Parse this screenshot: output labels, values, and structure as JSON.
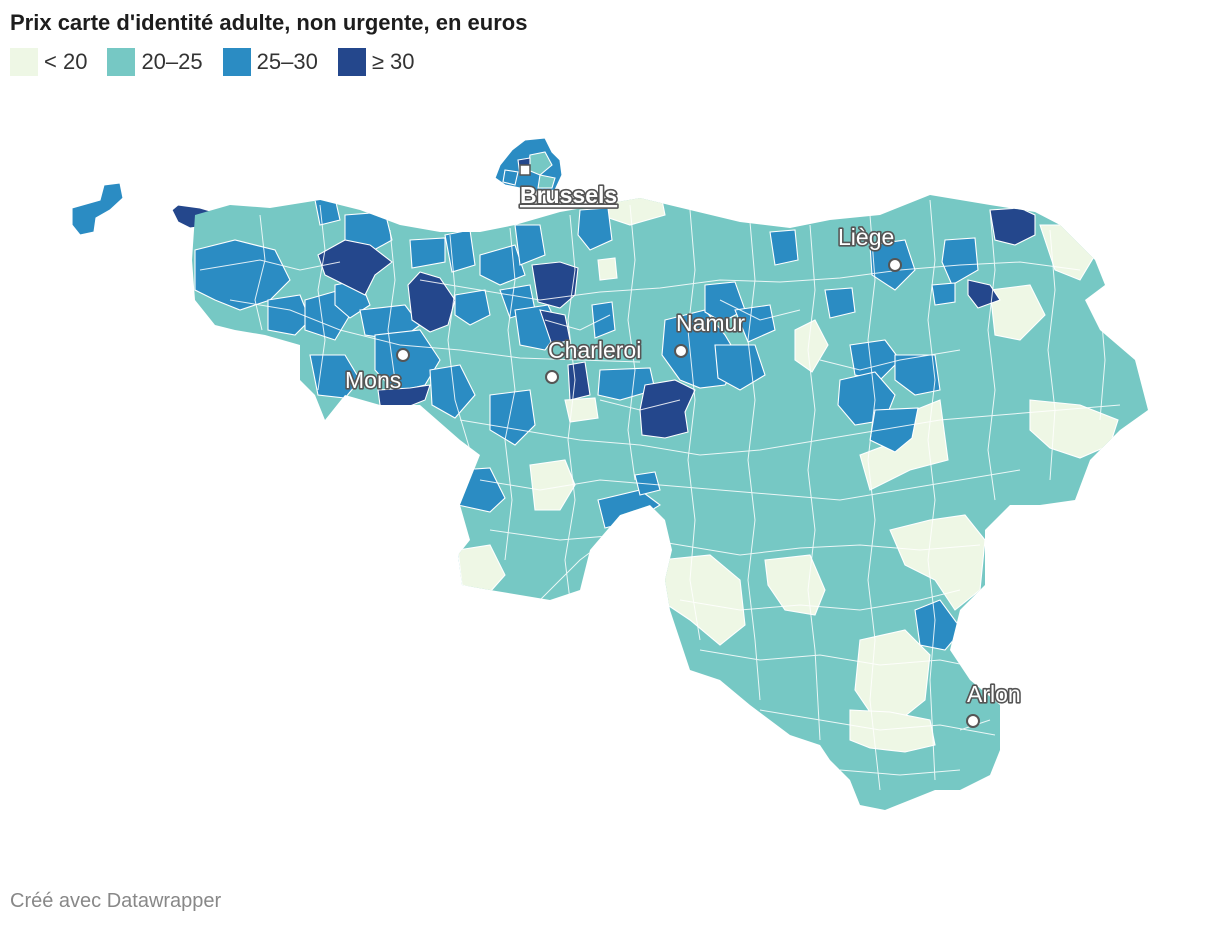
{
  "title": "Prix carte d'identité adulte, non urgente, en euros",
  "legend": [
    {
      "label": "< 20",
      "color": "#eef7e5"
    },
    {
      "label": "20–25",
      "color": "#76c8c4"
    },
    {
      "label": "25–30",
      "color": "#2b8cc3"
    },
    {
      "label": "≥ 30",
      "color": "#24478c"
    }
  ],
  "cities": [
    {
      "name": "Brussels",
      "marker": "square"
    },
    {
      "name": "Liège",
      "marker": "circle"
    },
    {
      "name": "Namur",
      "marker": "circle"
    },
    {
      "name": "Charleroi",
      "marker": "circle"
    },
    {
      "name": "Mons",
      "marker": "circle"
    },
    {
      "name": "Arlon",
      "marker": "circle"
    }
  ],
  "footer": "Créé avec Datawrapper"
}
